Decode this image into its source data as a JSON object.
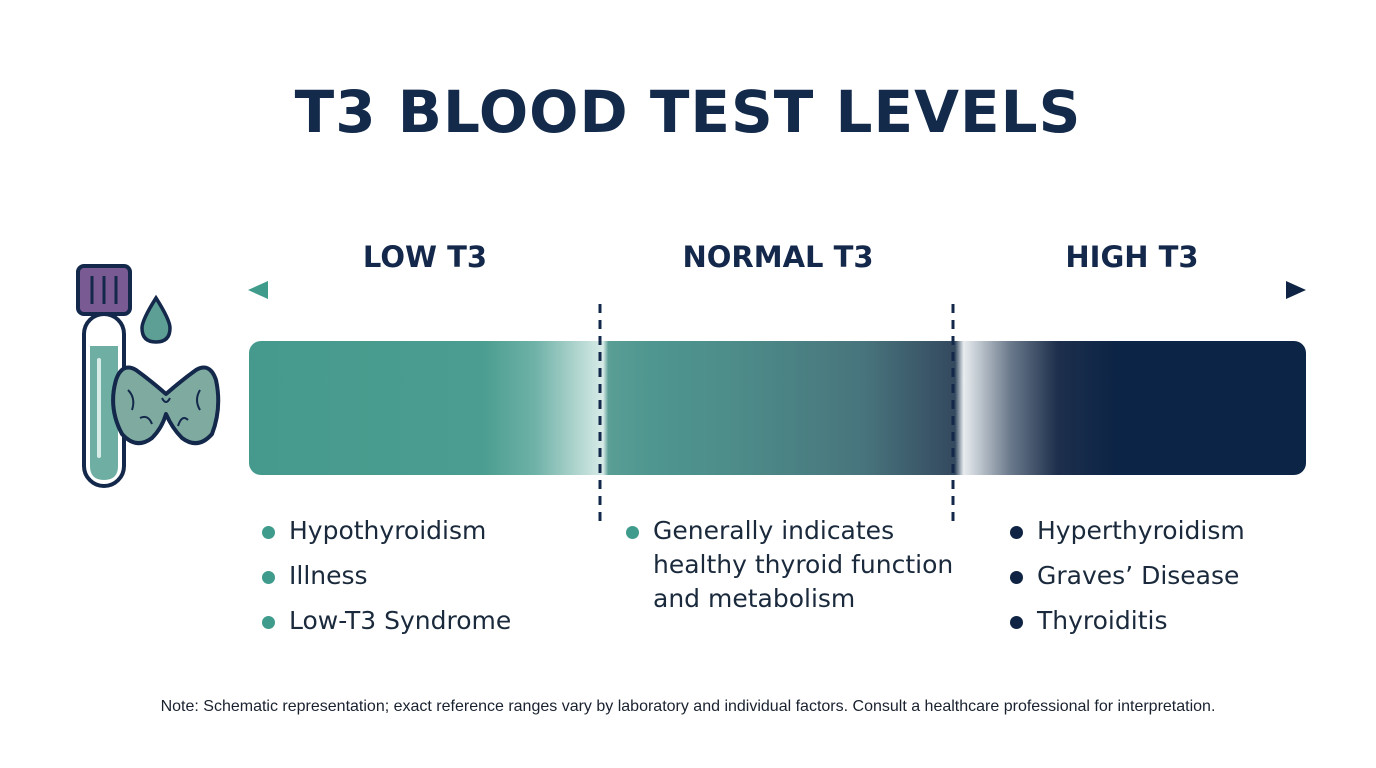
{
  "title": "T3 BLOOD TEST LEVELS",
  "zones": {
    "low": {
      "label": "LOW T3",
      "items": [
        "Hypothyroidism",
        "Illness",
        "Low-T3 Syndrome"
      ]
    },
    "normal": {
      "label": "NORMAL T3",
      "description": "Generally indicates healthy thyroid function and metabolism"
    },
    "high": {
      "label": "HIGH T3",
      "items": [
        "Hyperthyroidism",
        "Graves’ Disease",
        "Thyroiditis"
      ]
    }
  },
  "note": "Note: Schematic representation; exact reference ranges vary by laboratory and individual factors. Consult a healthcare professional for interpretation.",
  "icons": [
    "test-tube-icon",
    "blood-drop-icon",
    "thyroid-icon"
  ],
  "colors": {
    "teal": "#469a8d",
    "navy": "#0c2446",
    "tube_cap": "#7a5a93",
    "thyroid": "#7faaa0"
  }
}
